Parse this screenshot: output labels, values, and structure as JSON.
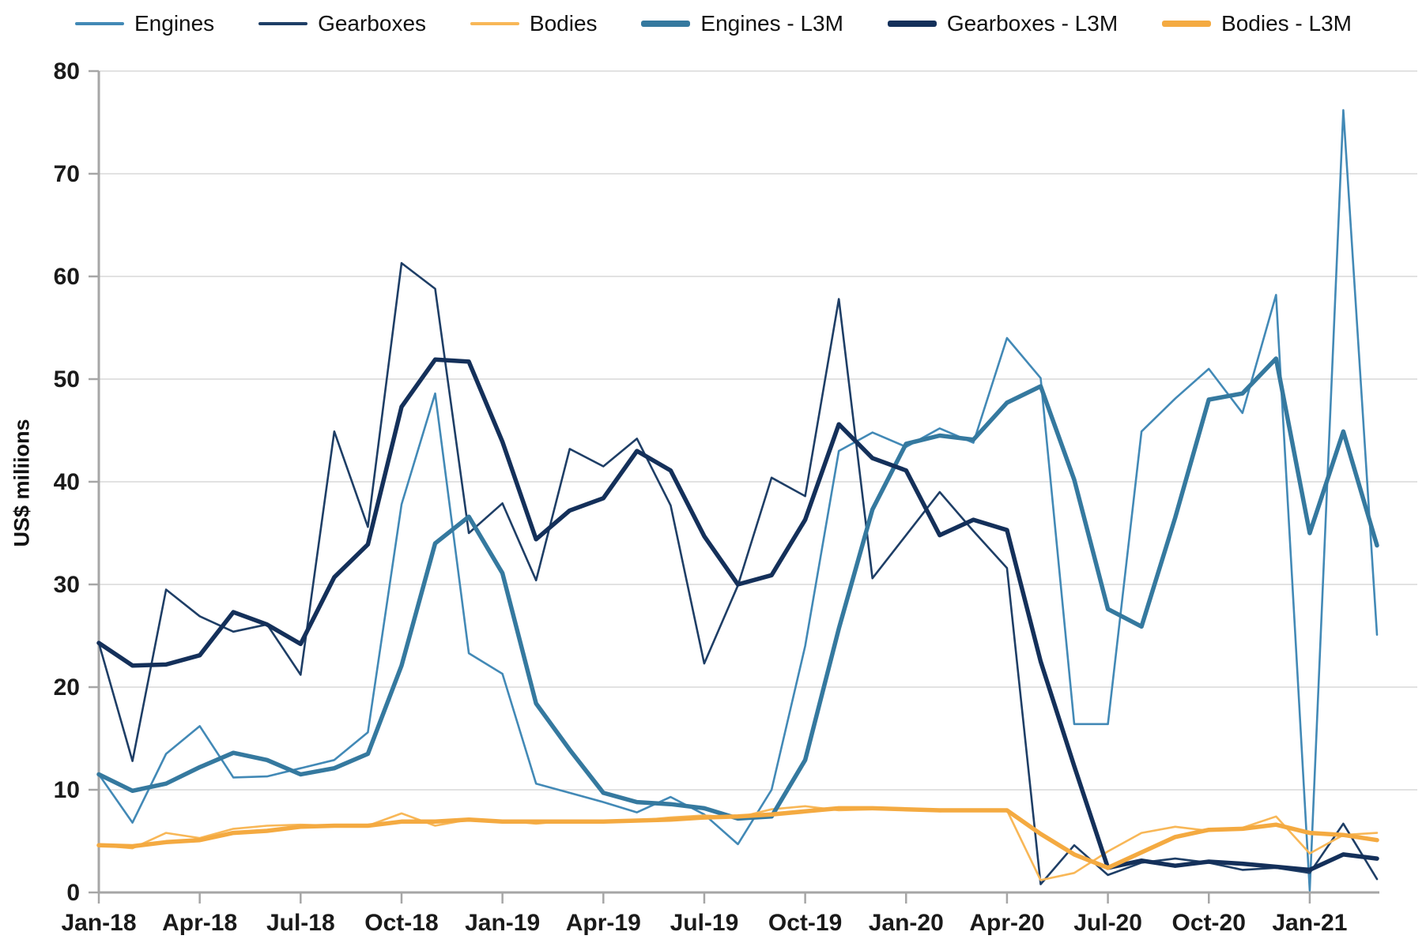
{
  "chart_data": {
    "type": "line",
    "title": "",
    "ylabel": "US$ miliions",
    "xlabel": "",
    "ylim": [
      0,
      80
    ],
    "ytick_step": 10,
    "grid": true,
    "legend_position": "top",
    "x": [
      "Jan-18",
      "Feb-18",
      "Mar-18",
      "Apr-18",
      "May-18",
      "Jun-18",
      "Jul-18",
      "Aug-18",
      "Sep-18",
      "Oct-18",
      "Nov-18",
      "Dec-18",
      "Jan-19",
      "Feb-19",
      "Mar-19",
      "Apr-19",
      "May-19",
      "Jun-19",
      "Jul-19",
      "Aug-19",
      "Sep-19",
      "Oct-19",
      "Nov-19",
      "Dec-19",
      "Jan-20",
      "Feb-20",
      "Mar-20",
      "Apr-20",
      "May-20",
      "Jun-20",
      "Jul-20",
      "Aug-20",
      "Sep-20",
      "Oct-20",
      "Nov-20",
      "Dec-20",
      "Jan-21",
      "Feb-21",
      "Mar-21"
    ],
    "xtick_labels": [
      "Jan-18",
      "Apr-18",
      "Jul-18",
      "Oct-18",
      "Jan-19",
      "Apr-19",
      "Jul-19",
      "Oct-19",
      "Jan-20",
      "Apr-20",
      "Jul-20",
      "Oct-20",
      "Jan-21"
    ],
    "ytick_labels": [
      "0",
      "10",
      "20",
      "30",
      "40",
      "50",
      "60",
      "70",
      "80"
    ],
    "series": [
      {
        "id": "engines",
        "name": "Engines",
        "color": "#4289b6",
        "width": 2.6,
        "values": [
          11.5,
          6.8,
          13.5,
          16.2,
          11.2,
          11.3,
          12.1,
          12.9,
          15.6,
          37.8,
          48.6,
          23.3,
          21.3,
          10.6,
          9.7,
          8.8,
          7.8,
          9.3,
          7.6,
          4.7,
          10.0,
          24.0,
          43.0,
          44.8,
          43.4,
          45.2,
          43.8,
          54.0,
          50.1,
          16.4,
          16.4,
          44.9,
          48.1,
          51.0,
          46.7,
          58.2,
          0.2,
          76.2,
          25.1
        ]
      },
      {
        "id": "gearboxes",
        "name": "Gearboxes",
        "color": "#1e3e66",
        "width": 2.6,
        "values": [
          24.3,
          12.8,
          29.5,
          26.9,
          25.4,
          26.1,
          21.2,
          44.9,
          35.6,
          61.3,
          58.8,
          35.0,
          37.9,
          30.4,
          43.2,
          41.5,
          44.2,
          37.7,
          22.3,
          29.9,
          40.4,
          38.6,
          57.8,
          30.6,
          34.8,
          39.0,
          35.2,
          31.6,
          0.8,
          4.6,
          1.7,
          2.9,
          3.3,
          2.9,
          2.2,
          2.4,
          1.9,
          6.7,
          1.3
        ]
      },
      {
        "id": "bodies",
        "name": "Bodies",
        "color": "#f8b757",
        "width": 2.6,
        "values": [
          4.6,
          4.3,
          5.8,
          5.3,
          6.2,
          6.5,
          6.6,
          6.5,
          6.5,
          7.7,
          6.5,
          7.1,
          7.0,
          6.7,
          7.0,
          6.9,
          7.0,
          7.3,
          7.5,
          7.3,
          8.1,
          8.4,
          8.0,
          8.1,
          8.1,
          7.9,
          8.0,
          8.0,
          1.2,
          1.9,
          4.0,
          5.8,
          6.4,
          6.0,
          6.3,
          7.4,
          3.8,
          5.6,
          5.8
        ]
      },
      {
        "id": "engines-l3m",
        "name": "Engines - L3M",
        "color": "#35799f",
        "width": 5.5,
        "values": [
          11.5,
          9.9,
          10.6,
          12.2,
          13.6,
          12.9,
          11.5,
          12.1,
          13.5,
          22.1,
          34.0,
          36.6,
          31.1,
          18.4,
          13.9,
          9.7,
          8.8,
          8.6,
          8.2,
          7.2,
          7.4,
          12.9,
          25.7,
          37.3,
          43.7,
          44.5,
          44.1,
          47.7,
          49.3,
          40.2,
          27.6,
          25.9,
          36.5,
          48.0,
          48.6,
          52.0,
          35.0,
          44.9,
          33.8
        ]
      },
      {
        "id": "gearboxes-l3m",
        "name": "Gearboxes - L3M",
        "color": "#14305a",
        "width": 5.5,
        "values": [
          24.3,
          22.1,
          22.2,
          23.1,
          27.3,
          26.1,
          24.2,
          30.7,
          33.9,
          47.3,
          51.9,
          51.7,
          43.9,
          34.4,
          37.2,
          38.4,
          43.0,
          41.1,
          34.7,
          30.0,
          30.9,
          36.3,
          45.6,
          42.3,
          41.1,
          34.8,
          36.3,
          35.3,
          22.5,
          12.3,
          2.4,
          3.1,
          2.6,
          3.0,
          2.8,
          2.5,
          2.2,
          3.7,
          3.3
        ]
      },
      {
        "id": "bodies-l3m",
        "name": "Bodies - L3M",
        "color": "#f4aa41",
        "width": 5.5,
        "values": [
          4.6,
          4.5,
          4.9,
          5.1,
          5.8,
          6.0,
          6.4,
          6.5,
          6.5,
          6.9,
          6.9,
          7.1,
          6.9,
          6.9,
          6.9,
          6.9,
          7.0,
          7.1,
          7.3,
          7.4,
          7.6,
          7.9,
          8.2,
          8.2,
          8.1,
          8.0,
          8.0,
          8.0,
          5.7,
          3.7,
          2.4,
          3.9,
          5.4,
          6.1,
          6.2,
          6.6,
          5.8,
          5.6,
          5.1
        ]
      }
    ]
  }
}
